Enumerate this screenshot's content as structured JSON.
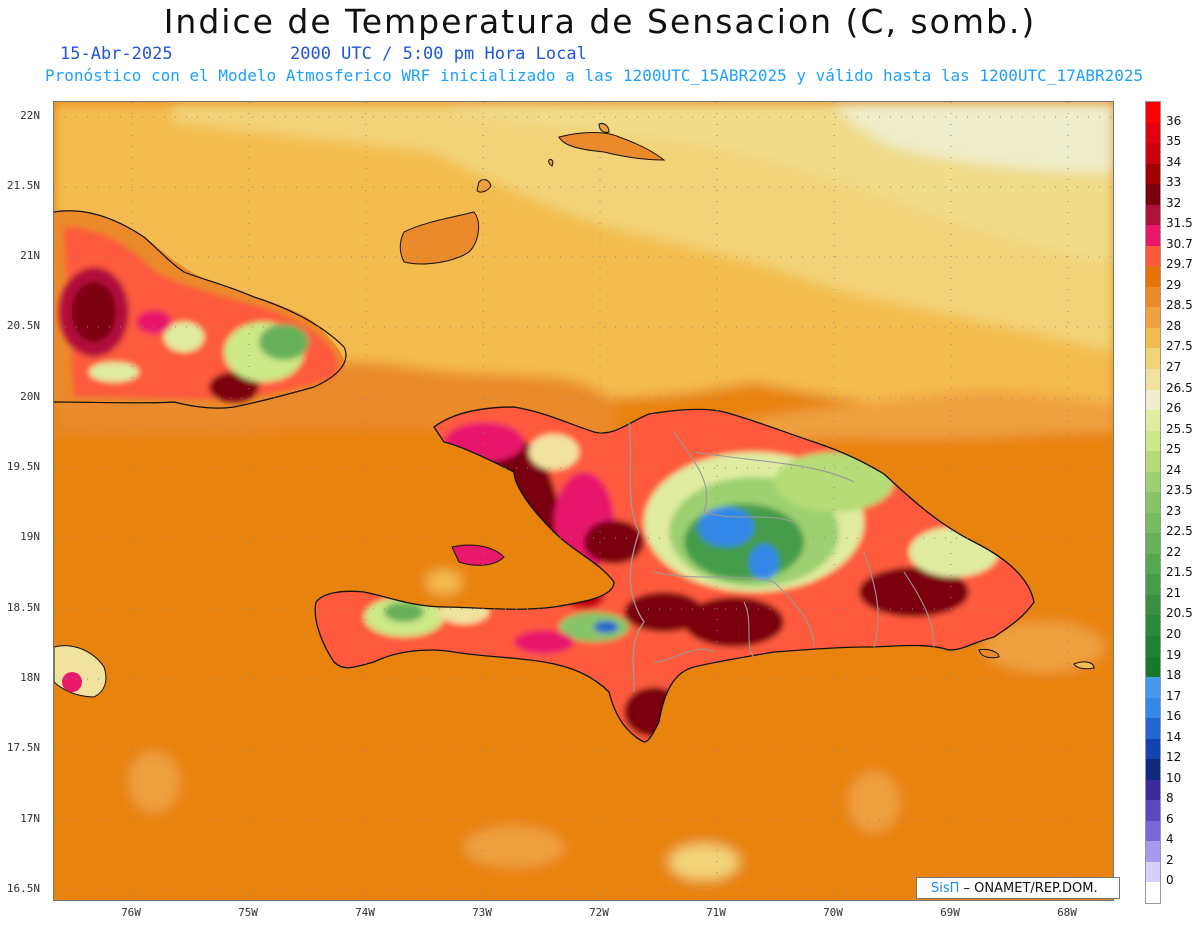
{
  "title": "Indice de Temperatura de Sensacion (C, somb.)",
  "subtitle": {
    "date": "15-Abr-2025",
    "time": "2000 UTC / 5:00 pm Hora Local",
    "model_info": "Pronóstico con el Modelo Atmosferico WRF inicializado a las 1200UTC_15ABR2025 y válido hasta las  1200UTC_17ABR2025"
  },
  "axes": {
    "lat_labels": [
      "22N",
      "21.5N",
      "21N",
      "20.5N",
      "20N",
      "19.5N",
      "19N",
      "18.5N",
      "18N",
      "17.5N",
      "17N",
      "16.5N"
    ],
    "lon_labels": [
      "76W",
      "75W",
      "74W",
      "73W",
      "72W",
      "71W",
      "70W",
      "69W",
      "68W"
    ]
  },
  "colorbar": {
    "labels": [
      "36",
      "35",
      "34",
      "33",
      "32",
      "31.5",
      "30.7",
      "29.7",
      "29",
      "28.5",
      "28",
      "27.5",
      "27",
      "26.5",
      "26",
      "25.5",
      "25",
      "24",
      "23.5",
      "23",
      "22.5",
      "22",
      "21.5",
      "21",
      "20.5",
      "20",
      "19",
      "18",
      "17",
      "16",
      "14",
      "12",
      "10",
      "8",
      "6",
      "4",
      "2",
      "0"
    ],
    "colors": [
      "#ff0000",
      "#e00010",
      "#c80010",
      "#a00000",
      "#7a0010",
      "#b0103a",
      "#e8186a",
      "#ff5a3c",
      "#e87408",
      "#ea8a2a",
      "#f0a040",
      "#f4bc50",
      "#f2d478",
      "#f2e2a0",
      "#eeeecc",
      "#e0eca0",
      "#cce888",
      "#b4dc78",
      "#9cd070",
      "#88c468",
      "#78bc60",
      "#66b058",
      "#54a850",
      "#449c48",
      "#389040",
      "#2a8838",
      "#1e8030",
      "#167828",
      "#4499ee",
      "#3388e8",
      "#2266d0",
      "#1144b0",
      "#102a80",
      "#3b2a9a",
      "#5a48c0",
      "#7a68d8",
      "#a898ee",
      "#d8d0f8"
    ]
  },
  "credit": {
    "brand": "SisΠ",
    "text": " – ONAMET/REP.DOM."
  },
  "colors": {
    "sea_base": "#e8830f",
    "border_line": "#999999",
    "coast_line": "#111111"
  }
}
